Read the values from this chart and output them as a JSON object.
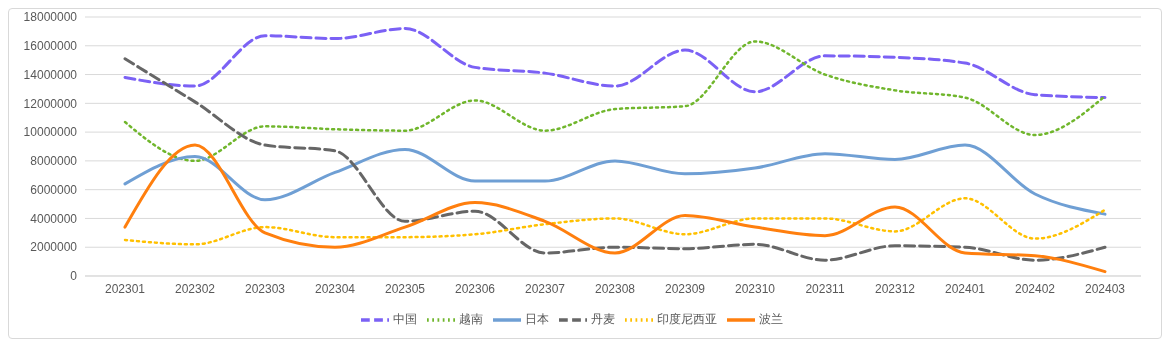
{
  "chart_data": {
    "type": "line",
    "categories": [
      "202301",
      "202302",
      "202303",
      "202304",
      "202305",
      "202306",
      "202307",
      "202308",
      "202309",
      "202310",
      "202311",
      "202312",
      "202401",
      "202402",
      "202403"
    ],
    "series": [
      {
        "name": "中国",
        "color": "#7b61f5",
        "line_style": "dashed",
        "values": [
          13800000,
          13200000,
          16700000,
          16500000,
          17200000,
          14500000,
          14100000,
          13200000,
          15700000,
          12800000,
          15300000,
          15200000,
          14800000,
          12600000,
          12400000
        ]
      },
      {
        "name": "越南",
        "color": "#70b62c",
        "line_style": "dotted",
        "values": [
          10700000,
          8000000,
          10400000,
          10200000,
          10100000,
          12200000,
          10100000,
          11600000,
          11800000,
          16300000,
          14000000,
          12900000,
          12400000,
          9800000,
          12500000
        ]
      },
      {
        "name": "日本",
        "color": "#6f9fd4",
        "line_style": "solid",
        "values": [
          6400000,
          8300000,
          5300000,
          7200000,
          8800000,
          6600000,
          6600000,
          8000000,
          7100000,
          7500000,
          8500000,
          8100000,
          9100000,
          5700000,
          4300000
        ]
      },
      {
        "name": "丹麦",
        "color": "#666666",
        "line_style": "dashed",
        "values": [
          15100000,
          12100000,
          9100000,
          8700000,
          3800000,
          4500000,
          1600000,
          2000000,
          1900000,
          2200000,
          1100000,
          2100000,
          2000000,
          1100000,
          2000000
        ]
      },
      {
        "name": "印度尼西亚",
        "color": "#ffc000",
        "line_style": "dotted",
        "values": [
          2500000,
          2200000,
          3400000,
          2700000,
          2700000,
          2900000,
          3600000,
          4000000,
          2900000,
          4000000,
          4000000,
          3100000,
          5400000,
          2600000,
          4600000
        ]
      },
      {
        "name": "波兰",
        "color": "#ff7f0e",
        "line_style": "solid",
        "values": [
          3400000,
          9100000,
          3000000,
          2000000,
          3400000,
          5100000,
          3800000,
          1600000,
          4200000,
          3400000,
          2800000,
          4800000,
          1600000,
          1400000,
          300000
        ]
      }
    ],
    "ylim": [
      0,
      18000000
    ],
    "yticks": [
      0,
      2000000,
      4000000,
      6000000,
      8000000,
      10000000,
      12000000,
      14000000,
      16000000,
      18000000
    ],
    "grid": "y",
    "legend": "bottom",
    "marker": "none"
  }
}
